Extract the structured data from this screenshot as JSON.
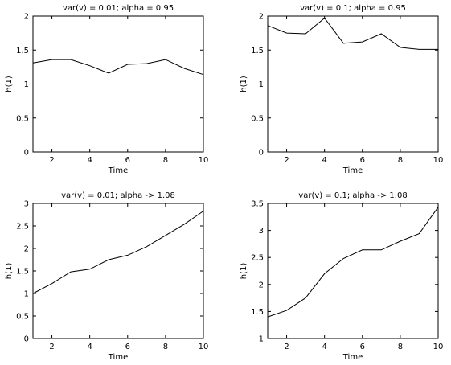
{
  "chart_data": [
    {
      "type": "line",
      "title": "var(v) = 0.01; alpha = 0.95",
      "xlabel": "Time",
      "ylabel": "h(1)",
      "xlim": [
        1,
        10
      ],
      "ylim": [
        0,
        2
      ],
      "xticks": [
        2,
        4,
        6,
        8,
        10
      ],
      "yticks": [
        0,
        0.5,
        1,
        1.5,
        2
      ],
      "x": [
        1,
        2,
        3,
        4,
        5,
        6,
        7,
        8,
        9,
        10
      ],
      "series": [
        {
          "values": [
            1.31,
            1.36,
            1.36,
            1.27,
            1.16,
            1.29,
            1.3,
            1.36,
            1.23,
            1.14
          ]
        }
      ]
    },
    {
      "type": "line",
      "title": "var(v) = 0.1; alpha = 0.95",
      "xlabel": "Time",
      "ylabel": "h(1)",
      "xlim": [
        1,
        10
      ],
      "ylim": [
        0,
        2
      ],
      "xticks": [
        2,
        4,
        6,
        8,
        10
      ],
      "yticks": [
        0,
        0.5,
        1,
        1.5,
        2
      ],
      "x": [
        1,
        2,
        3,
        4,
        5,
        6,
        7,
        8,
        9,
        10
      ],
      "series": [
        {
          "values": [
            1.86,
            1.75,
            1.74,
            1.97,
            1.6,
            1.62,
            1.74,
            1.54,
            1.51,
            1.51
          ]
        }
      ]
    },
    {
      "type": "line",
      "title": "var(v) = 0.01; alpha -> 1.08",
      "xlabel": "Time",
      "ylabel": "h(1)",
      "xlim": [
        1,
        10
      ],
      "ylim": [
        0,
        3
      ],
      "xticks": [
        2,
        4,
        6,
        8,
        10
      ],
      "yticks": [
        0,
        0.5,
        1,
        1.5,
        2,
        2.5,
        3
      ],
      "x": [
        1,
        2,
        3,
        4,
        5,
        6,
        7,
        8,
        9,
        10
      ],
      "series": [
        {
          "values": [
            1.0,
            1.22,
            1.48,
            1.54,
            1.75,
            1.85,
            2.04,
            2.29,
            2.54,
            2.83
          ]
        }
      ]
    },
    {
      "type": "line",
      "title": "var(v) = 0.1; alpha -> 1.08",
      "xlabel": "Time",
      "ylabel": "h(1)",
      "xlim": [
        1,
        10
      ],
      "ylim": [
        1,
        3.5
      ],
      "xticks": [
        2,
        4,
        6,
        8,
        10
      ],
      "yticks": [
        1,
        1.5,
        2,
        2.5,
        3,
        3.5
      ],
      "x": [
        1,
        2,
        3,
        4,
        5,
        6,
        7,
        8,
        9,
        10
      ],
      "series": [
        {
          "values": [
            1.4,
            1.52,
            1.75,
            2.2,
            2.48,
            2.64,
            2.64,
            2.8,
            2.94,
            3.43
          ]
        }
      ]
    }
  ]
}
